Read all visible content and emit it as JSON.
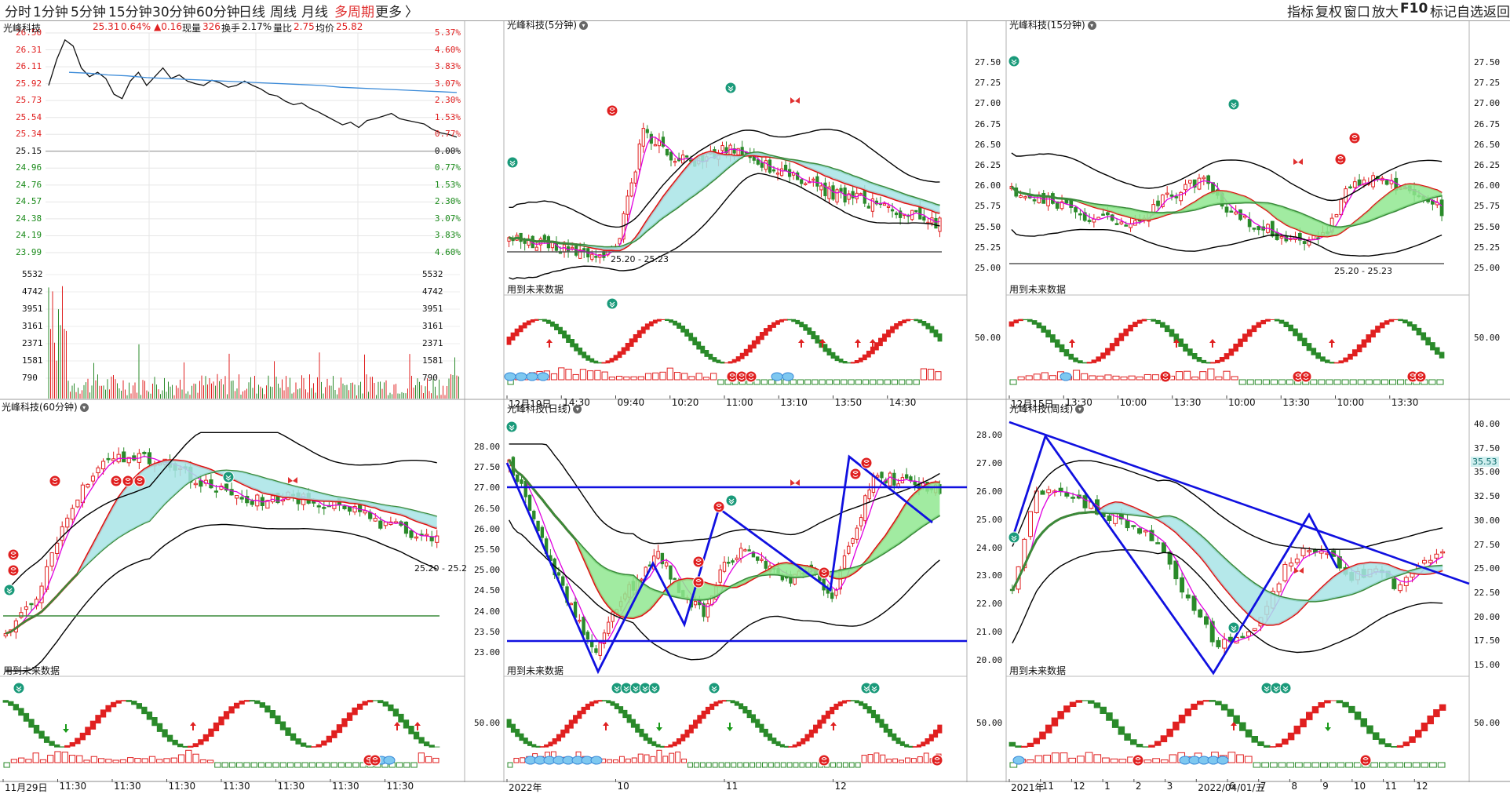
{
  "toolbar": {
    "periods": [
      "分时",
      "1分钟",
      "5分钟",
      "15分钟",
      "30分钟",
      "60分钟",
      "日线",
      "周线",
      "月线",
      "多周期",
      "更多"
    ],
    "active_period": "多周期",
    "more_arrow": "〉",
    "tools": [
      "指标",
      "复权",
      "窗口",
      "放大",
      "F10",
      "标记",
      "自选",
      "返回"
    ]
  },
  "stock": {
    "name": "光峰科技",
    "price": "25.31",
    "change_pct": "0.64%",
    "change": "▲0.16",
    "volume_label": "现量",
    "volume": "326",
    "turnover_label": "换手",
    "turnover": "2.17%",
    "ratio_label": "量比",
    "ratio": "2.75",
    "avg_label": "均价",
    "avg": "25.82"
  },
  "colors": {
    "up": "#e02020",
    "down": "#2a8a2a",
    "ma_black": "#000000",
    "ma_red": "#e01010",
    "ma_magenta": "#e000e0",
    "ma_green": "#3a8a3a",
    "fill_cyan": "#a8e4e6",
    "fill_green": "#90e890",
    "trend_blue": "#1010e0",
    "avg_line": "#3a8ad8"
  },
  "future_note": "用到未来数据",
  "panels": {
    "p5": {
      "title": "光峰科技(5分钟)",
      "range": "25.20 - 25.23"
    },
    "p15": {
      "title": "光峰科技(15分钟)",
      "range": "25.20 - 25.23"
    },
    "p60": {
      "title": "光峰科技(60分钟)",
      "range": "25.20 - 25.2"
    },
    "pday": {
      "title": "光峰科技(日线)"
    },
    "pweek": {
      "title": "光峰科技(周线)",
      "price_tag": "35.53"
    }
  },
  "chart_data": [
    {
      "type": "line",
      "panel": "intraday",
      "left_axis": [
        "26.50",
        "26.31",
        "26.11",
        "25.92",
        "25.73",
        "25.54",
        "25.34",
        "25.15",
        "24.96",
        "24.76",
        "24.57",
        "24.38",
        "24.19",
        "23.99"
      ],
      "right_axis": [
        "5.37%",
        "4.60%",
        "3.83%",
        "3.07%",
        "2.30%",
        "1.53%",
        "0.77%",
        "0.00%",
        "0.77%",
        "1.53%",
        "2.30%",
        "3.07%",
        "3.83%",
        "4.60%"
      ],
      "prev_close": 25.15,
      "price_series": [
        25.9,
        26.2,
        26.42,
        26.35,
        26.1,
        26.0,
        26.05,
        25.98,
        25.8,
        25.75,
        25.95,
        26.05,
        25.9,
        26.0,
        26.1,
        25.98,
        26.02,
        25.95,
        25.92,
        25.9,
        25.96,
        25.93,
        25.88,
        25.9,
        25.95,
        25.9,
        25.86,
        25.8,
        25.78,
        25.72,
        25.68,
        25.7,
        25.64,
        25.6,
        25.55,
        25.5,
        25.45,
        25.48,
        25.42,
        25.5,
        25.52,
        25.55,
        25.58,
        25.52,
        25.5,
        25.48,
        25.46,
        25.4,
        25.36,
        25.34,
        25.31
      ],
      "avg_series": [
        26.05,
        26.04,
        26.02,
        26.01,
        25.99,
        25.98,
        25.97,
        25.96,
        25.95,
        25.94,
        25.93,
        25.92,
        25.91,
        25.9,
        25.88,
        25.87,
        25.86,
        25.85,
        25.84,
        25.83,
        25.82
      ],
      "volume_axis": [
        "5532",
        "4742",
        "3951",
        "3161",
        "2371",
        "1581",
        "790"
      ]
    },
    {
      "type": "bar",
      "panel": "5min",
      "y_axis": [],
      "x_ticks": [
        "12月19日",
        "14:30",
        "09:40",
        "10:20",
        "11:00",
        "13:10",
        "13:50",
        "14:30"
      ]
    },
    {
      "type": "bar",
      "panel": "15min",
      "y_axis": [
        "27.50",
        "27.25",
        "27.00",
        "26.75",
        "26.50",
        "26.25",
        "26.00",
        "25.75",
        "25.50",
        "25.25",
        "25.00"
      ],
      "indicator_axis": "50.00",
      "x_ticks": [
        "12月15日",
        "13:30",
        "10:00",
        "13:30",
        "10:00",
        "13:30",
        "10:00",
        "13:30"
      ]
    },
    {
      "type": "bar",
      "panel": "15min-right-axis",
      "y_axis": [
        "27.50",
        "27.25",
        "27.00",
        "26.75",
        "26.50",
        "26.25",
        "26.00",
        "25.75",
        "25.50",
        "25.25",
        "25.00"
      ],
      "indicator_axis": "50.00"
    },
    {
      "type": "bar",
      "panel": "60min",
      "x_ticks": [
        "11月29日",
        "11:30",
        "11:30",
        "11:30",
        "11:30",
        "11:30",
        "11:30",
        "11:30"
      ]
    },
    {
      "type": "bar",
      "panel": "daily",
      "y_axis": [
        "28.00",
        "27.50",
        "27.00",
        "26.50",
        "26.00",
        "25.50",
        "25.00",
        "24.50",
        "24.00",
        "23.50",
        "23.00"
      ],
      "indicator_axis": "50.00",
      "x_ticks": [
        "2022年",
        "10",
        "11",
        "12"
      ]
    },
    {
      "type": "bar",
      "panel": "weekly",
      "y_axis": [
        "28.00",
        "27.00",
        "26.00",
        "25.00",
        "24.00",
        "23.00",
        "22.00",
        "21.00",
        "20.00"
      ],
      "indicator_axis": "50.00",
      "x_ticks": [
        "2021年",
        "11",
        "12",
        "1",
        "2",
        "3",
        "2022/04/01/五",
        "6",
        "7",
        "8",
        "9",
        "10",
        "11",
        "12"
      ]
    },
    {
      "type": "bar",
      "panel": "weekly-right-axis",
      "y_axis": [
        "40.00",
        "37.50",
        "35.00",
        "32.50",
        "30.00",
        "27.50",
        "25.00",
        "22.50",
        "20.00",
        "17.50",
        "15.00"
      ],
      "indicator_axis": "50.00"
    }
  ]
}
